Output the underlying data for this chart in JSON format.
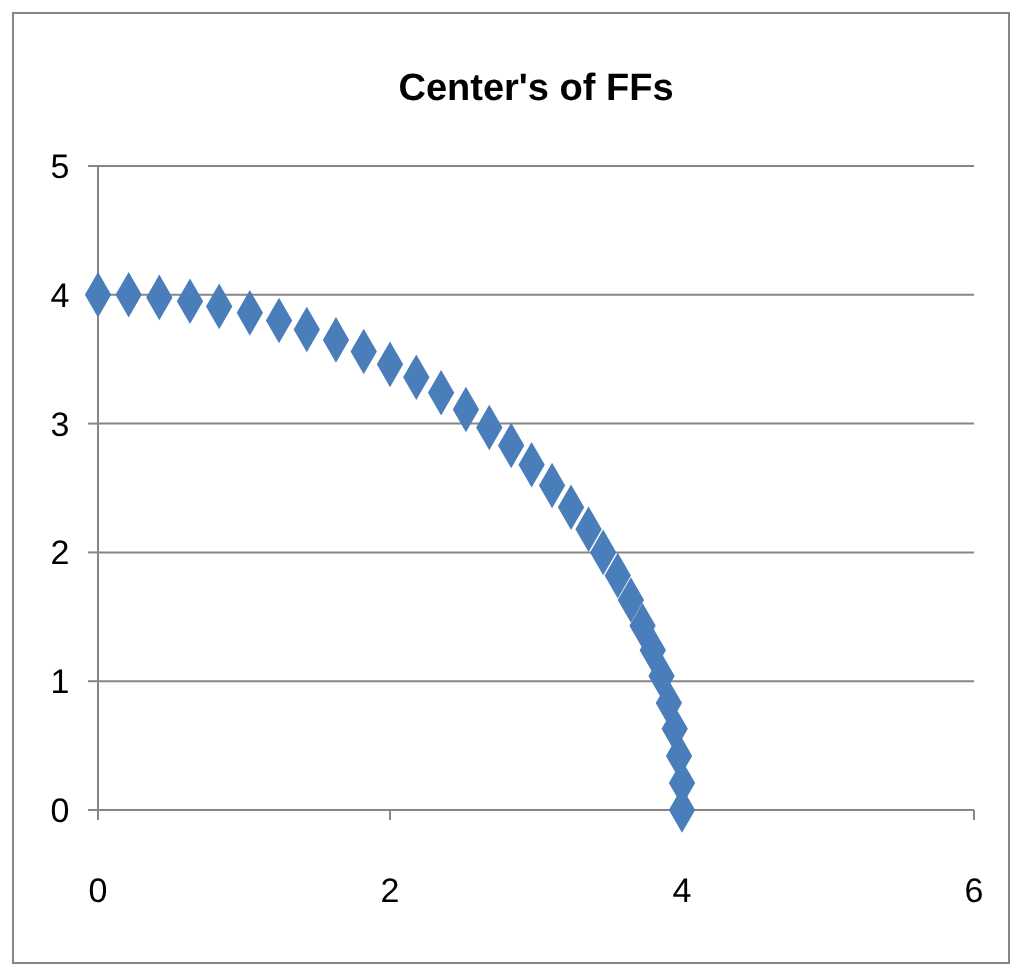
{
  "chart_data": {
    "type": "scatter",
    "title": "Center's of FFs",
    "marker": "diamond",
    "grid": "y",
    "xlim": [
      0,
      6
    ],
    "xticks": [
      0,
      2,
      4,
      6
    ],
    "ylim": [
      0,
      5
    ],
    "yticks": [
      0,
      1,
      2,
      3,
      4,
      5
    ],
    "series": [
      {
        "color": "#4a7ebb",
        "x": [
          0,
          0.21,
          0.42,
          0.63,
          0.83,
          1.04,
          1.24,
          1.43,
          1.63,
          1.82,
          2.0,
          2.18,
          2.35,
          2.52,
          2.68,
          2.83,
          2.97,
          3.11,
          3.24,
          3.36,
          3.46,
          3.56,
          3.65,
          3.73,
          3.8,
          3.86,
          3.91,
          3.95,
          3.98,
          4.0,
          4
        ],
        "values": [
          4,
          4.0,
          3.98,
          3.95,
          3.91,
          3.86,
          3.8,
          3.73,
          3.65,
          3.56,
          3.46,
          3.36,
          3.24,
          3.11,
          2.97,
          2.83,
          2.68,
          2.52,
          2.35,
          2.18,
          2.0,
          1.82,
          1.63,
          1.43,
          1.24,
          1.04,
          0.83,
          0.63,
          0.42,
          0.21,
          0
        ]
      }
    ]
  }
}
